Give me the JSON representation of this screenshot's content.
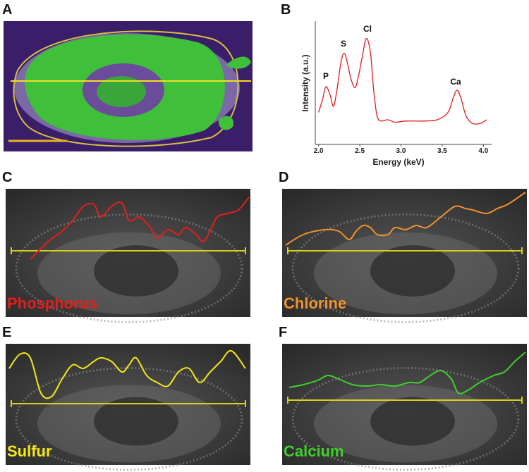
{
  "labels": {
    "a": "A",
    "b": "B"
  },
  "chart_data": {
    "type": "line",
    "x": [
      2.0,
      2.05,
      2.09,
      2.14,
      2.18,
      2.22,
      2.27,
      2.31,
      2.35,
      2.39,
      2.44,
      2.48,
      2.53,
      2.58,
      2.63,
      2.67,
      2.71,
      2.76,
      2.84,
      2.93,
      3.06,
      3.27,
      3.44,
      3.57,
      3.63,
      3.68,
      3.73,
      3.79,
      3.87,
      3.96,
      4.04
    ],
    "series": [
      {
        "color": "#e31a1c",
        "values": [
          26,
          37,
          47,
          40,
          31,
          43,
          66,
          74,
          66,
          54,
          46,
          54,
          71,
          86,
          74,
          43,
          23,
          19,
          20,
          18,
          19,
          19,
          20,
          26,
          37,
          44,
          37,
          23,
          17,
          17,
          20
        ]
      }
    ],
    "xlim": [
      1.96,
      4.1
    ],
    "ylim": [
      0,
      100
    ],
    "xticks": [
      {
        "value": 2,
        "label": "2.0"
      },
      2.5,
      {
        "value": 3,
        "label": "3.0"
      },
      3.5,
      {
        "value": 4,
        "label": "4.0"
      }
    ],
    "xlabel": "Energy (keV)",
    "ylabel": "Intensity (a.u.)",
    "annotations": [
      "P",
      "S",
      "Cl",
      "Ca"
    ]
  },
  "maps": [
    {
      "letter": "C",
      "element": "Phosphorus",
      "color": "#e0201c"
    },
    {
      "letter": "D",
      "element": "Chlorine",
      "color": "#f0922e"
    },
    {
      "letter": "E",
      "element": "Sulfur",
      "color": "#f5e616"
    },
    {
      "letter": "F",
      "element": "Calcium",
      "color": "#3fcf2c"
    }
  ]
}
